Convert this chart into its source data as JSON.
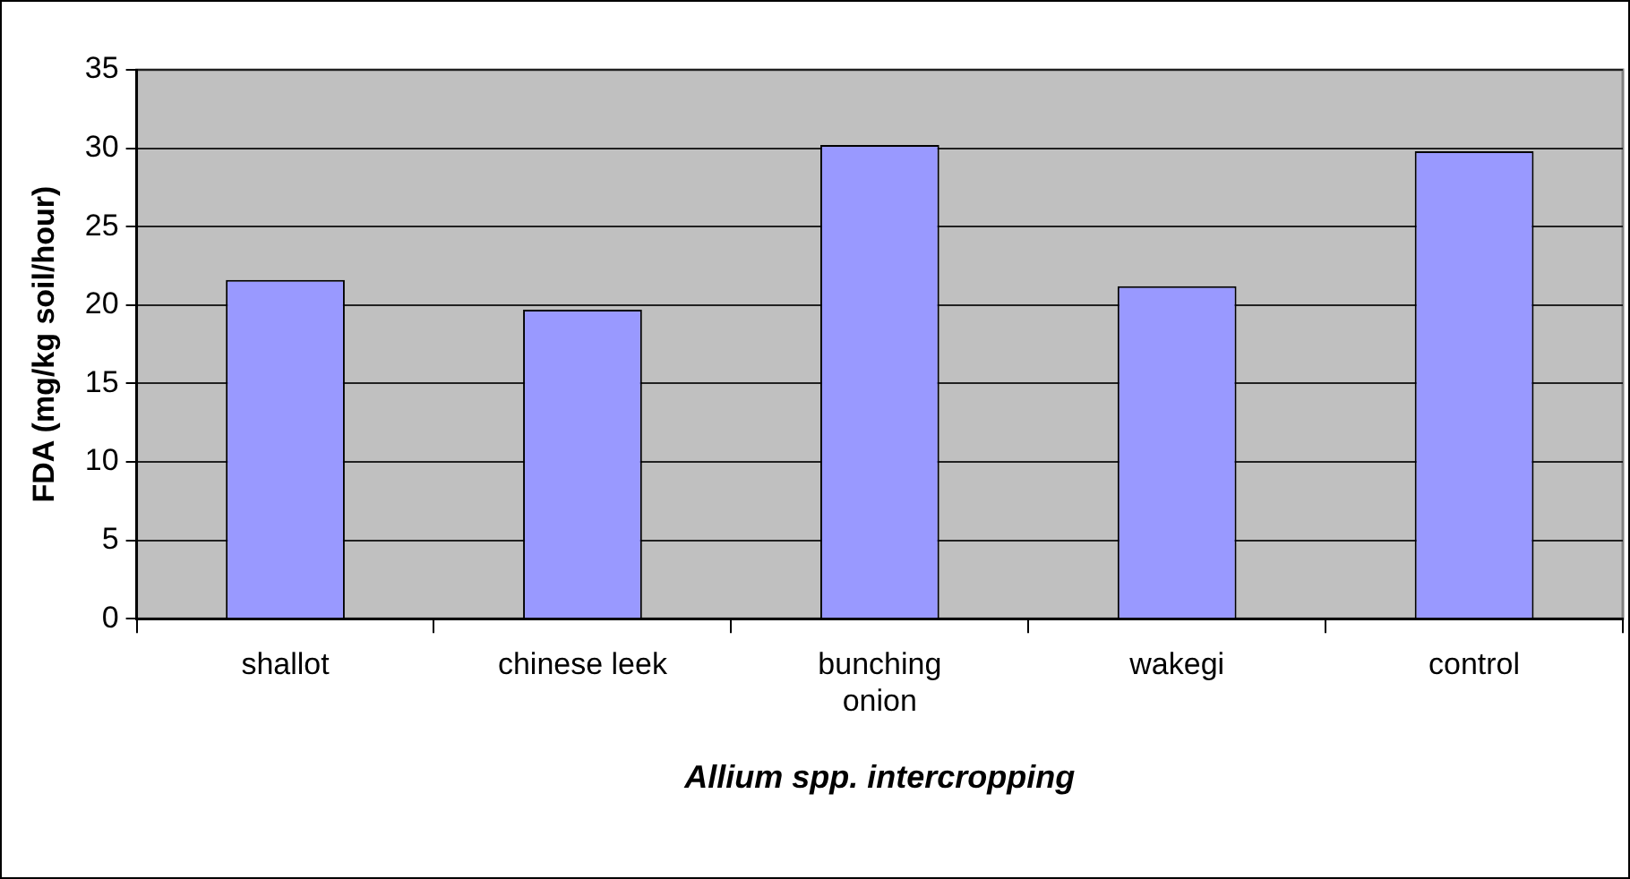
{
  "chart_data": {
    "type": "bar",
    "xlabel": "Allium spp. intercropping",
    "ylabel": "FDA (mg/kg soil/hour)",
    "categories": [
      "shallot",
      "chinese leek",
      "bunching onion",
      "wakegi",
      "control"
    ],
    "values": [
      21.6,
      19.7,
      30.2,
      21.2,
      29.8
    ],
    "color": "#9999ff",
    "ylim": [
      0,
      35
    ],
    "yticks": [
      0,
      5,
      10,
      15,
      20,
      25,
      30,
      35
    ],
    "grid": "y",
    "legend": false
  }
}
